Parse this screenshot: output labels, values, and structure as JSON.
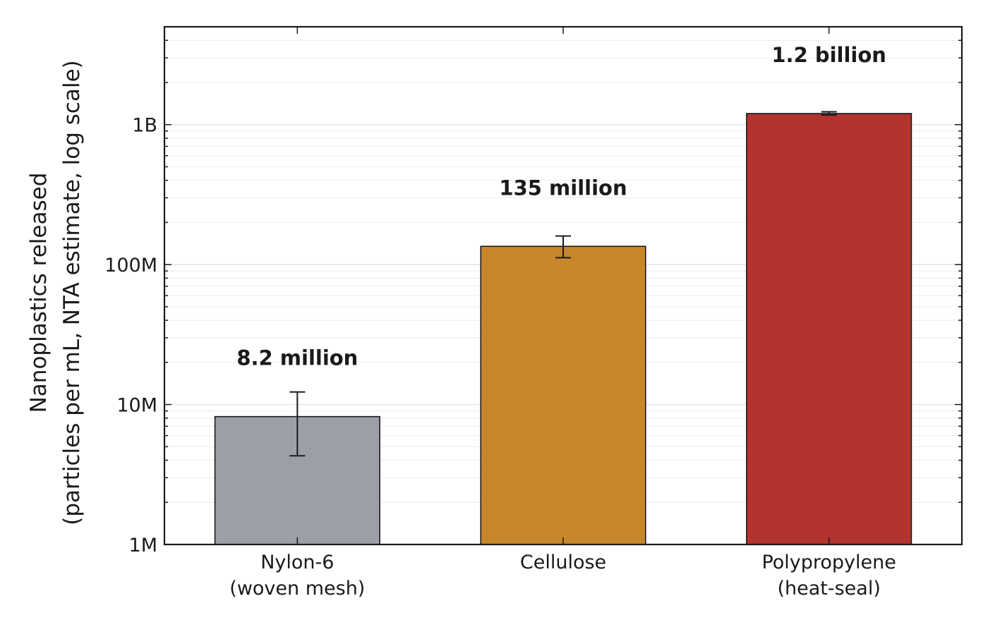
{
  "chart_data": {
    "type": "bar",
    "title": "",
    "xlabel": "",
    "ylabel_lines": [
      "Nanoplastics released",
      "(particles per mL, NTA estimate, log scale)"
    ],
    "yscale": "log",
    "ylim": [
      1000000,
      5000000000
    ],
    "yticks": [
      {
        "value": 1000000,
        "label": "1M"
      },
      {
        "value": 10000000,
        "label": "10M"
      },
      {
        "value": 100000000,
        "label": "100M"
      },
      {
        "value": 1000000000,
        "label": "1B"
      }
    ],
    "grid": "horizontal minor",
    "categories": [
      {
        "lines": [
          "Nylon-6",
          "(woven mesh)"
        ]
      },
      {
        "lines": [
          "Cellulose"
        ]
      },
      {
        "lines": [
          "Polypropylene",
          "(heat-seal)"
        ]
      }
    ],
    "values": [
      8200000,
      135000000,
      1200000000
    ],
    "error_low": [
      4300000,
      112000000,
      1170000000
    ],
    "error_high": [
      12300000,
      160000000,
      1235000000
    ],
    "value_labels": [
      "8.2 million",
      "135 million",
      "1.2 billion"
    ],
    "colors": [
      "#9ca0a6",
      "#c8862b",
      "#b3332e"
    ]
  }
}
